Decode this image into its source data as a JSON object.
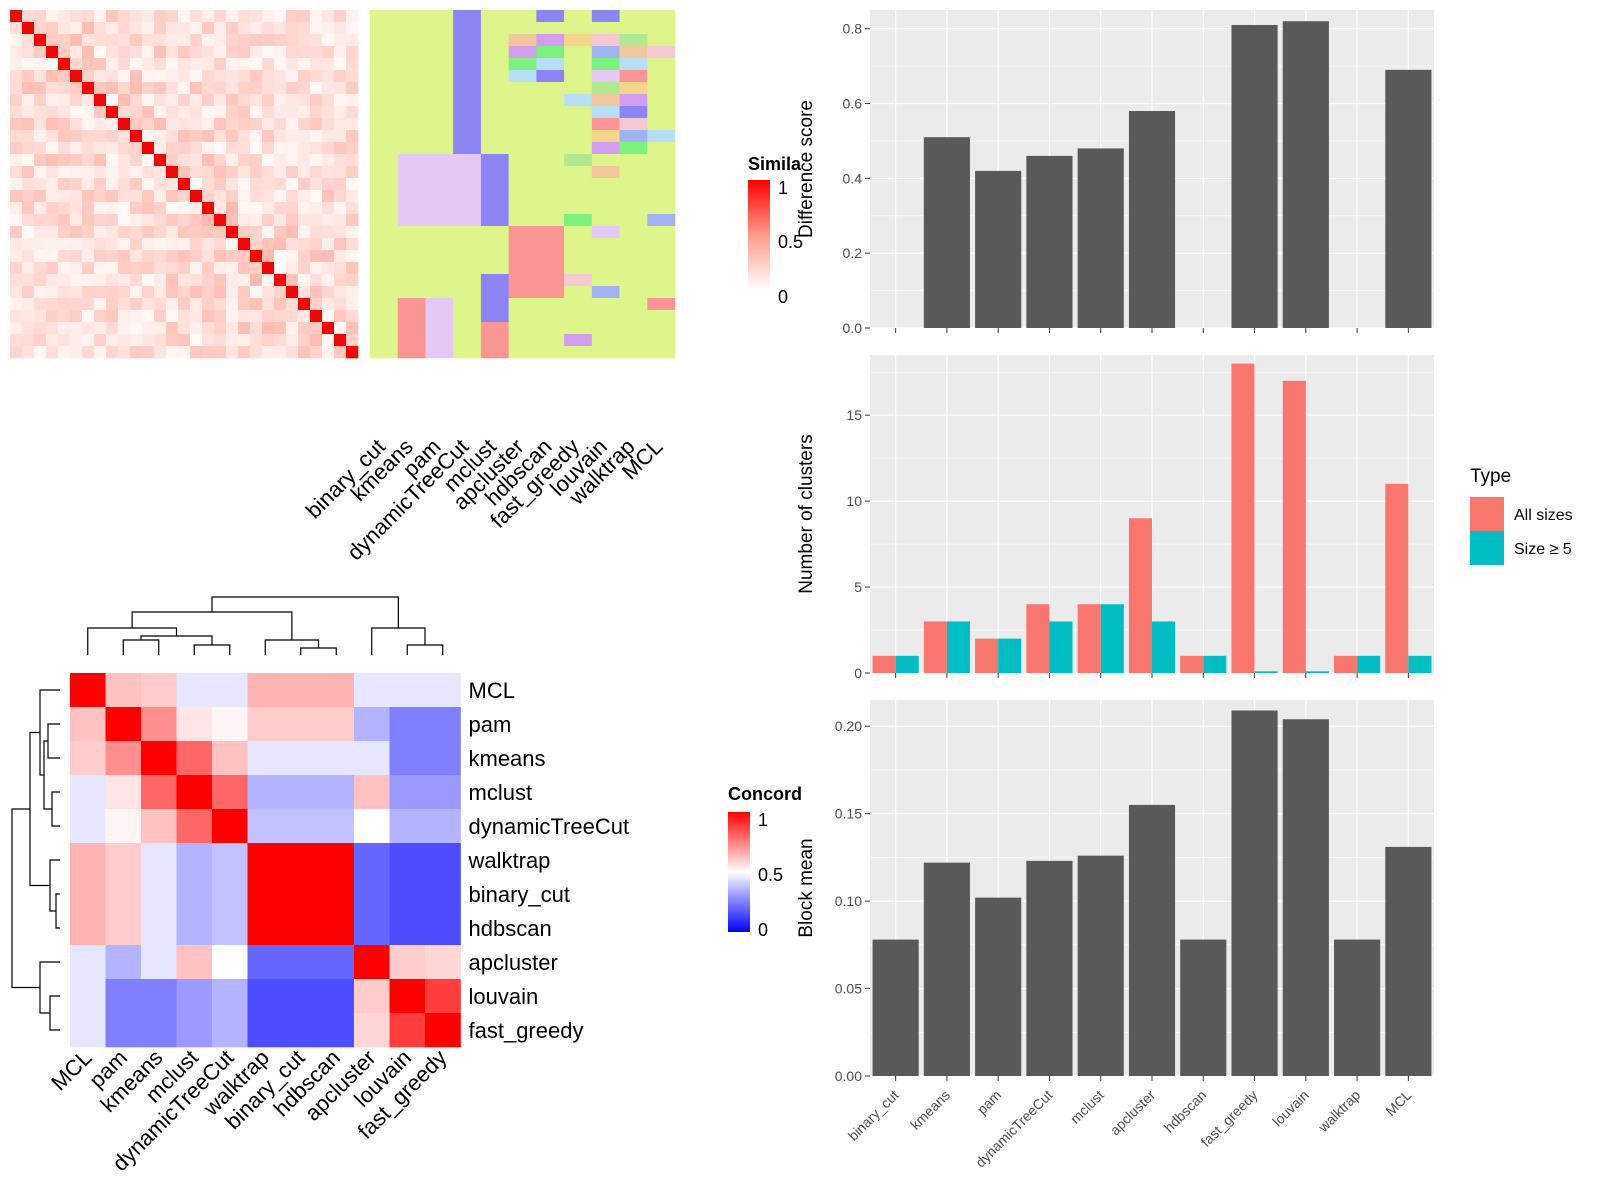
{
  "colors": {
    "panel_bg": "#ebebeb",
    "grid": "#ffffff",
    "bar_gray": "#595959",
    "all_sizes": "#f8766d",
    "size_ge5": "#00bfc4",
    "diag_red": "#ff0000",
    "label_green": "#ddf58a",
    "blue": "#0000ff"
  },
  "methods": [
    "binary_cut",
    "kmeans",
    "pam",
    "dynamicTreeCut",
    "mclust",
    "apcluster",
    "hdbscan",
    "fast_greedy",
    "louvain",
    "walktrap",
    "MCL"
  ],
  "chart_data": [
    {
      "id": "similarity-heatmap",
      "type": "heatmap",
      "legend_title": "Simila",
      "legend_ticks": [
        "1",
        "0.5",
        "0"
      ],
      "column_labels": [
        "binary_cut",
        "kmeans",
        "pam",
        "dynamicTreeCut",
        "mclust",
        "apcluster",
        "hdbscan",
        "fast_greedy",
        "louvain",
        "walktrap",
        "MCL"
      ]
    },
    {
      "id": "concordance-heatmap",
      "type": "heatmap",
      "legend_title": "Concord",
      "legend_ticks": [
        "1",
        "0.5",
        "0"
      ],
      "row_labels": [
        "MCL",
        "pam",
        "kmeans",
        "mclust",
        "dynamicTreeCut",
        "walktrap",
        "binary_cut",
        "hdbscan",
        "apcluster",
        "louvain",
        "fast_greedy"
      ],
      "column_labels": [
        "MCL",
        "pam",
        "kmeans",
        "mclust",
        "dynamicTreeCut",
        "walktrap",
        "binary_cut",
        "hdbscan",
        "apcluster",
        "louvain",
        "fast_greedy"
      ],
      "values": [
        [
          1.0,
          0.62,
          0.6,
          0.45,
          0.45,
          0.65,
          0.65,
          0.65,
          0.45,
          0.45,
          0.45
        ],
        [
          0.62,
          1.0,
          0.72,
          0.55,
          0.52,
          0.6,
          0.6,
          0.6,
          0.35,
          0.25,
          0.25
        ],
        [
          0.6,
          0.72,
          1.0,
          0.8,
          0.62,
          0.45,
          0.45,
          0.45,
          0.45,
          0.25,
          0.25
        ],
        [
          0.45,
          0.55,
          0.8,
          1.0,
          0.8,
          0.35,
          0.35,
          0.35,
          0.62,
          0.3,
          0.3
        ],
        [
          0.45,
          0.52,
          0.62,
          0.8,
          1.0,
          0.38,
          0.38,
          0.38,
          0.5,
          0.35,
          0.35
        ],
        [
          0.65,
          0.6,
          0.45,
          0.35,
          0.38,
          1.0,
          1.0,
          1.0,
          0.2,
          0.15,
          0.15
        ],
        [
          0.65,
          0.6,
          0.45,
          0.35,
          0.38,
          1.0,
          1.0,
          1.0,
          0.2,
          0.15,
          0.15
        ],
        [
          0.65,
          0.6,
          0.45,
          0.35,
          0.38,
          1.0,
          1.0,
          1.0,
          0.2,
          0.15,
          0.15
        ],
        [
          0.45,
          0.35,
          0.45,
          0.62,
          0.5,
          0.2,
          0.2,
          0.2,
          1.0,
          0.6,
          0.58
        ],
        [
          0.45,
          0.25,
          0.25,
          0.3,
          0.35,
          0.15,
          0.15,
          0.15,
          0.6,
          1.0,
          0.88
        ],
        [
          0.45,
          0.25,
          0.25,
          0.3,
          0.35,
          0.15,
          0.15,
          0.15,
          0.58,
          0.88,
          1.0
        ]
      ]
    },
    {
      "id": "difference-score",
      "type": "bar",
      "ylabel": "Difference score",
      "categories": [
        "binary_cut",
        "kmeans",
        "pam",
        "dynamicTreeCut",
        "mclust",
        "apcluster",
        "hdbscan",
        "fast_greedy",
        "louvain",
        "walktrap",
        "MCL"
      ],
      "values": [
        0,
        0.51,
        0.42,
        0.46,
        0.48,
        0.58,
        0,
        0.81,
        0.82,
        0,
        0.69
      ],
      "ylim": [
        0,
        0.85
      ],
      "yticks": [
        "0.0",
        "0.2",
        "0.4",
        "0.6",
        "0.8"
      ]
    },
    {
      "id": "number-of-clusters",
      "type": "bar",
      "ylabel": "Number of clusters",
      "categories": [
        "binary_cut",
        "kmeans",
        "pam",
        "dynamicTreeCut",
        "mclust",
        "apcluster",
        "hdbscan",
        "fast_greedy",
        "louvain",
        "walktrap",
        "MCL"
      ],
      "series": [
        {
          "name": "All sizes",
          "values": [
            1,
            3,
            2,
            4,
            4,
            9,
            1,
            18,
            17,
            1,
            11
          ]
        },
        {
          "name": "Size ≥ 5",
          "values": [
            1,
            3,
            2,
            3,
            4,
            3,
            1,
            0.1,
            0.1,
            1,
            1
          ]
        }
      ],
      "ylim": [
        0,
        18.5
      ],
      "yticks": [
        "0",
        "5",
        "10",
        "15"
      ],
      "legend_title": "Type"
    },
    {
      "id": "block-mean",
      "type": "bar",
      "ylabel": "Block mean",
      "categories": [
        "binary_cut",
        "kmeans",
        "pam",
        "dynamicTreeCut",
        "mclust",
        "apcluster",
        "hdbscan",
        "fast_greedy",
        "louvain",
        "walktrap",
        "MCL"
      ],
      "values": [
        0.078,
        0.122,
        0.102,
        0.123,
        0.126,
        0.155,
        0.078,
        0.209,
        0.204,
        0.078,
        0.131
      ],
      "ylim": [
        0,
        0.215
      ],
      "yticks": [
        "0.00",
        "0.05",
        "0.10",
        "0.15",
        "0.20"
      ]
    }
  ]
}
